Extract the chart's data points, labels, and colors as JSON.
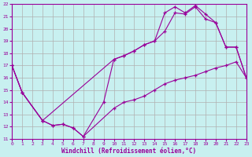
{
  "xlabel": "Windchill (Refroidissement éolien,°C)",
  "bg_color": "#c8f0f0",
  "line_color": "#990099",
  "grid_color": "#b0b0b0",
  "xlim": [
    0,
    23
  ],
  "ylim": [
    11,
    22
  ],
  "xticks": [
    0,
    1,
    2,
    3,
    4,
    5,
    6,
    7,
    8,
    9,
    10,
    11,
    12,
    13,
    14,
    15,
    16,
    17,
    18,
    19,
    20,
    21,
    22,
    23
  ],
  "yticks": [
    11,
    12,
    13,
    14,
    15,
    16,
    17,
    18,
    19,
    20,
    21,
    22
  ],
  "line1_x": [
    0,
    1,
    3,
    4,
    5,
    6,
    7,
    10,
    11,
    12,
    13,
    14,
    15,
    16,
    17,
    18,
    19,
    20,
    21,
    22,
    23
  ],
  "line1_y": [
    17,
    14.8,
    12.5,
    12.1,
    12.2,
    11.9,
    11.2,
    13.5,
    14.0,
    14.2,
    14.5,
    15.0,
    15.5,
    15.8,
    16.0,
    16.2,
    16.5,
    16.8,
    17.0,
    17.3,
    16.0
  ],
  "line2_x": [
    0,
    1,
    3,
    4,
    5,
    6,
    7,
    9,
    10,
    11,
    12,
    13,
    14,
    15,
    16,
    17,
    18,
    19,
    20,
    21,
    22,
    23
  ],
  "line2_y": [
    17,
    14.8,
    12.5,
    12.1,
    12.2,
    11.9,
    11.2,
    14.0,
    17.5,
    17.8,
    18.2,
    18.7,
    19.0,
    19.8,
    21.3,
    21.2,
    21.8,
    20.8,
    20.5,
    18.5,
    18.5,
    16.0
  ],
  "line3_x": [
    0,
    1,
    3,
    10,
    11,
    12,
    13,
    14,
    15,
    16,
    17,
    18,
    19,
    20,
    21,
    22,
    23
  ],
  "line3_y": [
    17,
    14.8,
    12.5,
    17.5,
    17.8,
    18.2,
    18.7,
    19.0,
    21.3,
    21.8,
    21.3,
    21.9,
    21.2,
    20.5,
    18.5,
    18.5,
    16.0
  ]
}
